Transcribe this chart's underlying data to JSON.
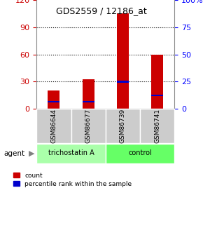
{
  "title": "GDS2559 / 12186_at",
  "samples": [
    "GSM86644",
    "GSM86677",
    "GSM86739",
    "GSM86741"
  ],
  "red_values": [
    20,
    33,
    105,
    60
  ],
  "blue_values": [
    8,
    8,
    30,
    15
  ],
  "ylim_left": [
    0,
    120
  ],
  "ylim_right": [
    0,
    100
  ],
  "yticks_left": [
    0,
    30,
    60,
    90,
    120
  ],
  "yticks_right": [
    0,
    25,
    50,
    75,
    100
  ],
  "yticklabels_right": [
    "0",
    "25",
    "50",
    "75",
    "100%"
  ],
  "groups": [
    {
      "label": "trichostatin A",
      "samples": [
        0,
        1
      ],
      "color": "#aaffaa"
    },
    {
      "label": "control",
      "samples": [
        2,
        3
      ],
      "color": "#66ff66"
    }
  ],
  "agent_label": "agent",
  "bar_width": 0.35,
  "red_color": "#cc0000",
  "blue_color": "#0000cc",
  "grid_color": "#000000",
  "bg_color": "#ffffff",
  "sample_box_color": "#cccccc",
  "legend_red_label": "count",
  "legend_blue_label": "percentile rank within the sample"
}
